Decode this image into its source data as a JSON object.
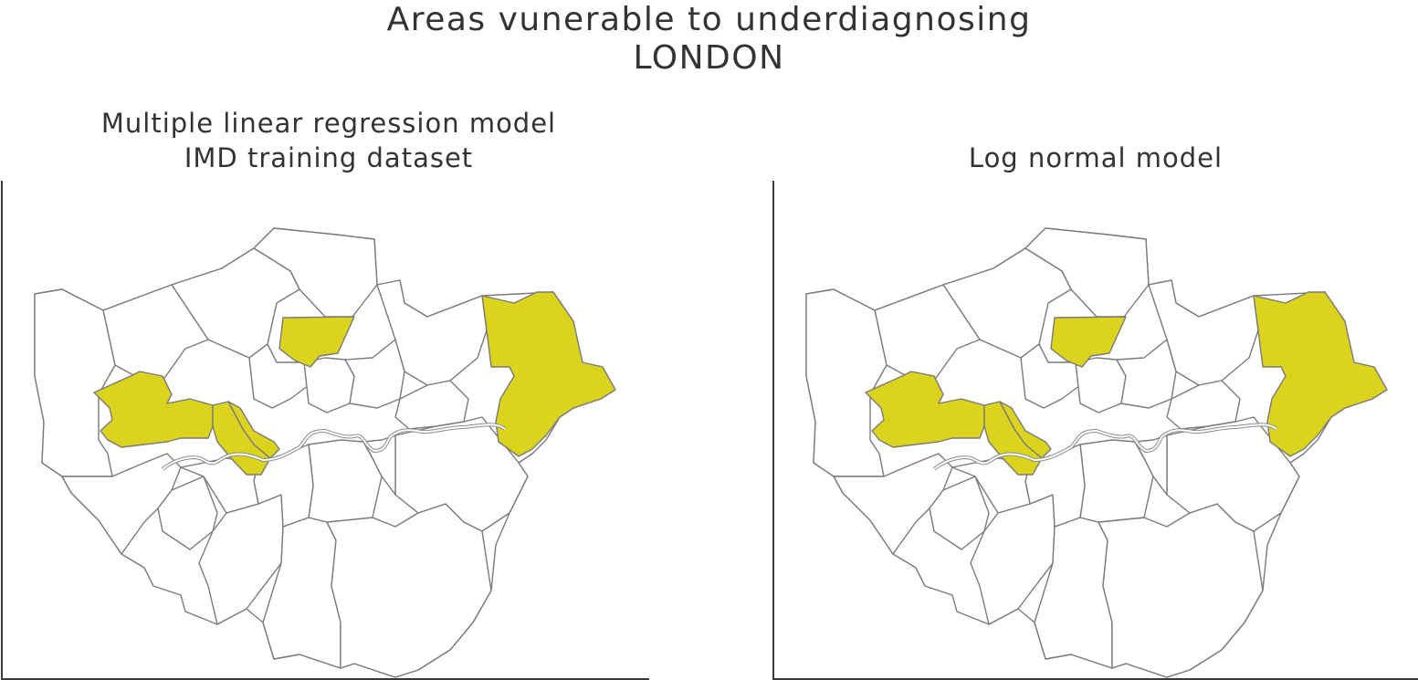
{
  "title": {
    "line1": "Areas vunerable to underdiagnosing",
    "line2": "LONDON"
  },
  "maps": [
    {
      "title_line1": "Multiple linear regression model",
      "title_line2": "IMD training dataset",
      "highlighted_areas": [
        "north-central",
        "west",
        "central-west-a",
        "central-west-b",
        "east"
      ]
    },
    {
      "title_line1": "",
      "title_line2": "Log normal model",
      "highlighted_areas": [
        "north-central",
        "west",
        "central-west-a",
        "central-west-b",
        "east"
      ]
    }
  ],
  "colors": {
    "highlight": "#dbd31c",
    "base": "#ffffff",
    "border": "#7a7a7a",
    "text": "#333333"
  }
}
